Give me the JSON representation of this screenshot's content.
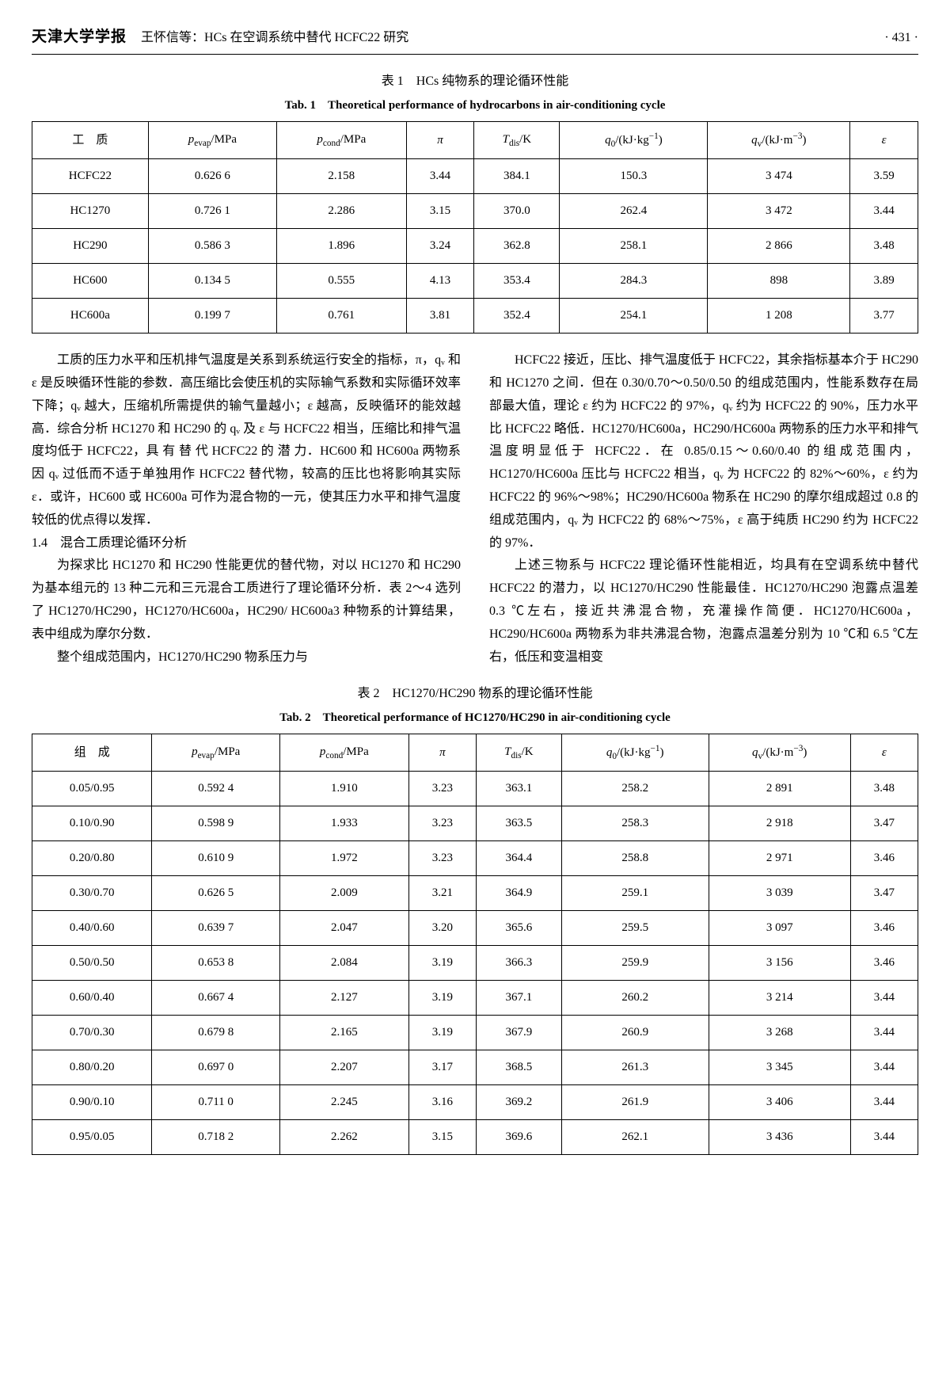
{
  "header": {
    "journal": "天津大学学报",
    "subtitle": "王怀信等：HCs 在空调系统中替代 HCFC22 研究",
    "page_num": "· 431 ·"
  },
  "table1": {
    "caption_cn": "表 1　HCs 纯物系的理论循环性能",
    "caption_en": "Tab. 1　Theoretical performance of hydrocarbons in air-conditioning cycle",
    "h1": "工　质",
    "h2": "pₑᵥₐₚ/MPa",
    "h3": "p꜀ₒₙ𝒹/MPa",
    "h4": "π",
    "h5": "T𝒹ᵢₛ/K",
    "h6": "q₀/(kJ·kg⁻¹)",
    "h7": "qᵥ/(kJ·m⁻³)",
    "h8": "ε",
    "rows": [
      [
        "HCFC22",
        "0.626 6",
        "2.158",
        "3.44",
        "384.1",
        "150.3",
        "3 474",
        "3.59"
      ],
      [
        "HC1270",
        "0.726 1",
        "2.286",
        "3.15",
        "370.0",
        "262.4",
        "3 472",
        "3.44"
      ],
      [
        "HC290",
        "0.586 3",
        "1.896",
        "3.24",
        "362.8",
        "258.1",
        "2 866",
        "3.48"
      ],
      [
        "HC600",
        "0.134 5",
        "0.555",
        "4.13",
        "353.4",
        "284.3",
        "898",
        "3.89"
      ],
      [
        "HC600a",
        "0.199 7",
        "0.761",
        "3.81",
        "352.4",
        "254.1",
        "1 208",
        "3.77"
      ]
    ]
  },
  "body": {
    "left_p1": "工质的压力水平和压机排气温度是关系到系统运行安全的指标，π，qᵥ 和 ε 是反映循环性能的参数．高压缩比会使压机的实际输气系数和实际循环效率下降；qᵥ 越大，压缩机所需提供的输气量越小；ε 越高，反映循环的能效越高．综合分析 HC1270 和 HC290 的 qᵥ 及 ε 与 HCFC22 相当，压缩比和排气温度均低于 HCFC22，具 有 替 代 HCFC22 的 潜 力．HC600 和 HC600a 两物系因 qᵥ 过低而不适于单独用作 HCFC22 替代物，较高的压比也将影响其实际 ε．或许，HC600 或 HC600a 可作为混合物的一元，使其压力水平和排气温度较低的优点得以发挥．",
    "left_sec": "1.4　混合工质理论循环分析",
    "left_p2": "为探求比 HC1270 和 HC290 性能更优的替代物，对以 HC1270 和 HC290 为基本组元的 13 种二元和三元混合工质进行了理论循环分析．表 2～4 选列了 HC1270/HC290，HC1270/HC600a，HC290/ HC600a3 种物系的计算结果，表中组成为摩尔分数．",
    "left_p3": "整个组成范围内，HC1270/HC290 物系压力与",
    "right_p1": "HCFC22 接近，压比、排气温度低于 HCFC22，其余指标基本介于 HC290 和 HC1270 之间．但在 0.30/0.70～0.50/0.50 的组成范围内，性能系数存在局部最大值，理论 ε 约为 HCFC22 的 97%，qᵥ 约为 HCFC22 的 90%，压力水平比 HCFC22 略低．HC1270/HC600a，HC290/HC600a 两物系的压力水平和排气温度明显低于 HCFC22．在 0.85/0.15～0.60/0.40 的组成范围内，HC1270/HC600a 压比与 HCFC22 相当，qᵥ 为 HCFC22 的 82%～60%，ε 约为 HCFC22 的 96%～98%；HC290/HC600a 物系在 HC290 的摩尔组成超过 0.8 的组成范围内，qᵥ 为 HCFC22 的 68%～75%，ε 高于纯质 HC290 约为 HCFC22 的 97%．",
    "right_p2": "上述三物系与 HCFC22 理论循环性能相近，均具有在空调系统中替代 HCFC22 的潜力，以 HC1270/HC290 性能最佳．HC1270/HC290 泡露点温差 0.3 ℃左右，接近共沸混合物，充灌操作简便．HC1270/HC600a，HC290/HC600a 两物系为非共沸混合物，泡露点温差分别为 10 ℃和 6.5 ℃左右，低压和变温相变"
  },
  "table2": {
    "caption_cn": "表 2　HC1270/HC290 物系的理论循环性能",
    "caption_en": "Tab. 2　Theoretical performance of HC1270/HC290 in air-conditioning cycle",
    "h1": "组　成",
    "h2": "pₑᵥₐₚ/MPa",
    "h3": "p꜀ₒₙ𝒹/MPa",
    "h4": "π",
    "h5": "T𝒹ᵢₛ/K",
    "h6": "q₀/(kJ·kg⁻¹)",
    "h7": "qᵥ/(kJ·m⁻³)",
    "h8": "ε",
    "rows": [
      [
        "0.05/0.95",
        "0.592 4",
        "1.910",
        "3.23",
        "363.1",
        "258.2",
        "2 891",
        "3.48"
      ],
      [
        "0.10/0.90",
        "0.598 9",
        "1.933",
        "3.23",
        "363.5",
        "258.3",
        "2 918",
        "3.47"
      ],
      [
        "0.20/0.80",
        "0.610 9",
        "1.972",
        "3.23",
        "364.4",
        "258.8",
        "2 971",
        "3.46"
      ],
      [
        "0.30/0.70",
        "0.626 5",
        "2.009",
        "3.21",
        "364.9",
        "259.1",
        "3 039",
        "3.47"
      ],
      [
        "0.40/0.60",
        "0.639 7",
        "2.047",
        "3.20",
        "365.6",
        "259.5",
        "3 097",
        "3.46"
      ],
      [
        "0.50/0.50",
        "0.653 8",
        "2.084",
        "3.19",
        "366.3",
        "259.9",
        "3 156",
        "3.46"
      ],
      [
        "0.60/0.40",
        "0.667 4",
        "2.127",
        "3.19",
        "367.1",
        "260.2",
        "3 214",
        "3.44"
      ],
      [
        "0.70/0.30",
        "0.679 8",
        "2.165",
        "3.19",
        "367.9",
        "260.9",
        "3 268",
        "3.44"
      ],
      [
        "0.80/0.20",
        "0.697 0",
        "2.207",
        "3.17",
        "368.5",
        "261.3",
        "3 345",
        "3.44"
      ],
      [
        "0.90/0.10",
        "0.711 0",
        "2.245",
        "3.16",
        "369.2",
        "261.9",
        "3 406",
        "3.44"
      ],
      [
        "0.95/0.05",
        "0.718 2",
        "2.262",
        "3.15",
        "369.6",
        "262.1",
        "3 436",
        "3.44"
      ]
    ]
  }
}
